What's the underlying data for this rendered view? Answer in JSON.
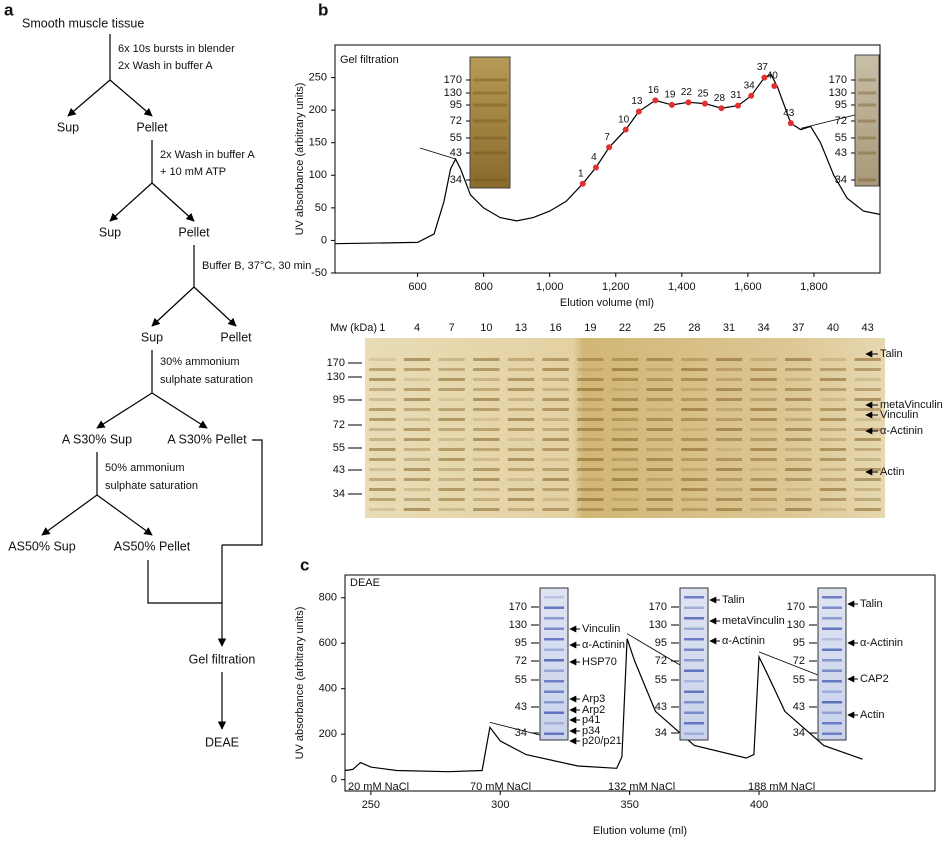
{
  "flowchart": {
    "label": "a",
    "start": "Smooth muscle tissue",
    "steps": [
      {
        "text": [
          "6x 10s bursts in blender",
          "2x Wash  in buffer A"
        ],
        "left": "Sup",
        "right": "Pellet"
      },
      {
        "text": [
          "2x Wash  in buffer A",
          "+ 10 mM  ATP"
        ],
        "left": "Sup",
        "right": "Pellet"
      },
      {
        "text": [
          "Buffer B, 37°C, 30 min"
        ],
        "left": "Sup",
        "right": "Pellet"
      },
      {
        "text": [
          "30% ammonium",
          "sulphate saturation"
        ],
        "left": "A S30% Sup",
        "right": "A S30% Pellet"
      },
      {
        "text": [
          "50% ammonium",
          "sulphate saturation"
        ],
        "left": "AS50% Sup",
        "right": "AS50% Pellet"
      }
    ],
    "end": [
      "Gel filtration",
      "DEAE"
    ]
  },
  "chart_data": [
    {
      "type": "line",
      "panel": "b",
      "annotation": "Gel filtration",
      "xlabel": "Elution volume (ml)",
      "ylabel": "UV absorbance (arbitrary units)",
      "xlim": [
        350,
        2000
      ],
      "ylim": [
        -50,
        300
      ],
      "xticks": [
        600,
        800,
        {
          "value": 1000,
          "label": "1,000"
        },
        {
          "value": 1200,
          "label": "1,200"
        },
        {
          "value": 1400,
          "label": "1,400"
        },
        {
          "value": 1600,
          "label": "1,600"
        },
        {
          "value": 1800,
          "label": "1,800"
        }
      ],
      "yticks": [
        -50,
        0,
        50,
        100,
        150,
        200,
        250
      ],
      "color": "#000000",
      "x": [
        350,
        600,
        650,
        680,
        700,
        715,
        730,
        760,
        800,
        850,
        900,
        950,
        1000,
        1050,
        1100,
        1140,
        1180,
        1230,
        1270,
        1320,
        1370,
        1420,
        1470,
        1520,
        1570,
        1610,
        1650,
        1670,
        1690,
        1730,
        1760,
        1790,
        1820,
        1860,
        1900,
        1950,
        2000
      ],
      "values": [
        -5,
        -3,
        10,
        60,
        110,
        125,
        110,
        70,
        50,
        35,
        30,
        35,
        45,
        60,
        87,
        112,
        143,
        170,
        198,
        215,
        208,
        212,
        210,
        203,
        207,
        222,
        250,
        255,
        235,
        180,
        170,
        175,
        150,
        100,
        65,
        45,
        40
      ],
      "points": {
        "color": "#e03030",
        "x": [
          1100,
          1140,
          1180,
          1230,
          1270,
          1320,
          1370,
          1420,
          1470,
          1520,
          1570,
          1610,
          1650,
          1680,
          1730
        ],
        "values": [
          87,
          112,
          143,
          170,
          198,
          215,
          208,
          212,
          210,
          203,
          207,
          222,
          250,
          237,
          180
        ],
        "labels": [
          1,
          4,
          7,
          10,
          13,
          16,
          19,
          22,
          25,
          28,
          31,
          34,
          37,
          40,
          43
        ]
      },
      "insets": [
        {
          "mw": [
            170,
            130,
            95,
            72,
            55,
            43,
            34
          ]
        },
        {
          "mw": [
            170,
            130,
            95,
            72,
            55,
            43,
            34
          ]
        }
      ]
    },
    {
      "type": "line",
      "panel": "c",
      "annotation": "DEAE",
      "xlabel": "Elution volume (ml)",
      "ylabel": "UV absorbance (arbitrary units)",
      "xlim": [
        240,
        468
      ],
      "ylim": [
        -50,
        900
      ],
      "xticks": [
        250,
        300,
        350,
        400
      ],
      "yticks": [
        0,
        200,
        400,
        600,
        800
      ],
      "color": "#000000",
      "x": [
        240,
        243,
        246,
        250,
        260,
        280,
        293,
        296,
        300,
        310,
        330,
        345,
        347,
        349,
        352,
        360,
        375,
        395,
        398,
        400,
        403,
        410,
        425,
        440
      ],
      "values": [
        40,
        45,
        75,
        55,
        40,
        35,
        40,
        230,
        170,
        110,
        60,
        50,
        100,
        620,
        520,
        300,
        150,
        95,
        110,
        540,
        470,
        300,
        150,
        90
      ],
      "notes": [
        "20 mM NaCl",
        "70 mM NaCl",
        "132 mM NaCl",
        "188 mM NaCl"
      ],
      "insets": [
        {
          "mw": [
            170,
            130,
            95,
            72,
            55,
            43,
            34
          ],
          "proteins": [
            "Vinculin",
            "α-Actinin",
            "HSP70",
            "Arp3",
            "Arp2",
            "p41",
            "p34",
            "p20/p21"
          ]
        },
        {
          "mw": [
            170,
            130,
            95,
            72,
            55,
            43,
            34
          ],
          "proteins": [
            "Talin",
            "metaVinculin",
            "α-Actinin"
          ]
        },
        {
          "mw": [
            170,
            130,
            95,
            72,
            55,
            43,
            34
          ],
          "proteins": [
            "Talin",
            "α-Actinin",
            "CAP2",
            "Actin"
          ]
        }
      ]
    }
  ],
  "gel": {
    "mw_label": "Mw (kDa)",
    "mw": [
      170,
      130,
      95,
      72,
      55,
      43,
      34
    ],
    "lanes": [
      1,
      4,
      7,
      10,
      13,
      16,
      19,
      22,
      25,
      28,
      31,
      34,
      37,
      40,
      43
    ],
    "proteins": [
      "Talin",
      "metaVinculin",
      "Vinculin",
      "α-Actinin",
      "Actin"
    ]
  }
}
